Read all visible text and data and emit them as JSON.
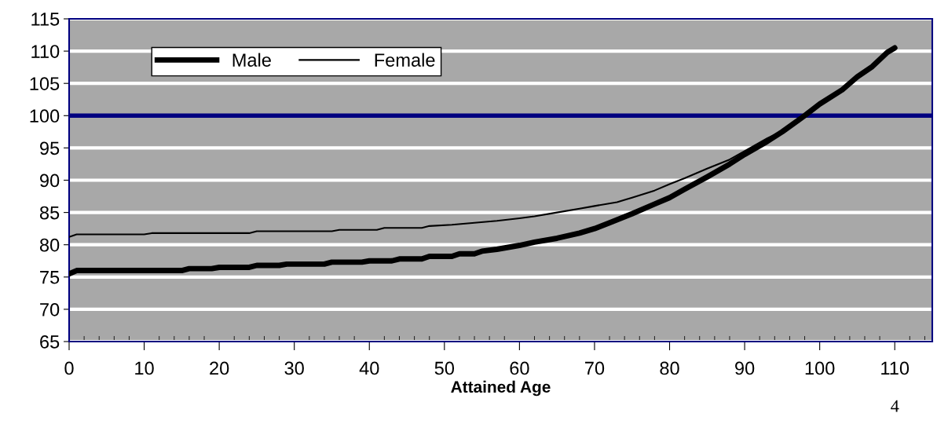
{
  "chart_data": {
    "type": "line",
    "xlabel": "Attained Age",
    "xlim": [
      0,
      115
    ],
    "xticks": [
      0,
      10,
      20,
      30,
      40,
      50,
      60,
      70,
      80,
      90,
      100,
      110
    ],
    "ylim": [
      65,
      115
    ],
    "yticks": [
      65,
      70,
      75,
      80,
      85,
      90,
      95,
      100,
      105,
      110,
      115
    ],
    "grid": "y",
    "legend": "top left",
    "marker": "none",
    "line_style": "solid",
    "ref_lines": [
      {
        "axis": "y",
        "value": 100,
        "color": "#000080"
      }
    ],
    "annotations": [
      "4"
    ],
    "series": [
      {
        "name": "Male",
        "color": "#000000",
        "x": [
          0,
          1,
          15,
          16,
          19,
          20,
          24,
          25,
          28,
          29,
          34,
          35,
          39,
          40,
          43,
          44,
          47,
          48,
          51,
          52,
          54,
          55,
          57,
          60,
          62,
          65,
          68,
          70,
          72,
          75,
          78,
          80,
          82,
          85,
          88,
          90,
          93,
          95,
          98,
          100,
          103,
          105,
          107,
          109,
          110
        ],
        "values": [
          75.5,
          76,
          76,
          76.3,
          76.3,
          76.5,
          76.5,
          76.8,
          76.8,
          77,
          77,
          77.3,
          77.3,
          77.5,
          77.5,
          77.8,
          77.8,
          78.2,
          78.2,
          78.6,
          78.6,
          79,
          79.3,
          79.9,
          80.4,
          81,
          81.8,
          82.5,
          83.4,
          84.8,
          86.3,
          87.3,
          88.6,
          90.5,
          92.5,
          94,
          96,
          97.5,
          100,
          101.8,
          104,
          106,
          107.6,
          109.8,
          110.5
        ]
      },
      {
        "name": "Female",
        "color": "#000000",
        "x": [
          0,
          1,
          10,
          11,
          24,
          25,
          35,
          36,
          41,
          42,
          47,
          48,
          51,
          54,
          57,
          60,
          62,
          65,
          68,
          70,
          73,
          75,
          78,
          80,
          82,
          85,
          88,
          90,
          93,
          95,
          98
        ],
        "values": [
          81.2,
          81.6,
          81.6,
          81.8,
          81.8,
          82.1,
          82.1,
          82.3,
          82.3,
          82.6,
          82.6,
          82.9,
          83.1,
          83.4,
          83.7,
          84.1,
          84.4,
          85,
          85.6,
          86,
          86.6,
          87.3,
          88.4,
          89.4,
          90.3,
          91.8,
          93.2,
          94.5,
          96.5,
          97.6,
          100
        ]
      }
    ]
  }
}
